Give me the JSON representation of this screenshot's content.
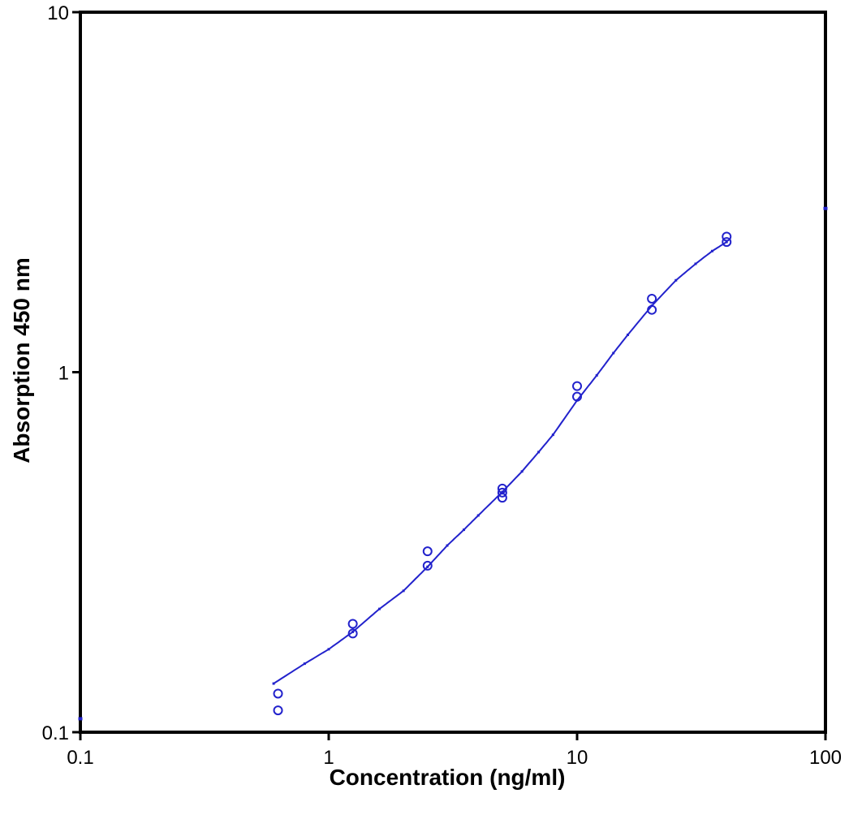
{
  "chart_data": {
    "type": "scatter",
    "xscale": "log",
    "yscale": "log",
    "xlim": [
      0.1,
      100
    ],
    "ylim": [
      0.1,
      10
    ],
    "xticks": [
      "0.1",
      "1",
      "10",
      "100"
    ],
    "yticks": [
      "0.1",
      "1",
      "10"
    ],
    "xlabel": "Concentration (ng/ml)",
    "ylabel": "Absorption 450 nm",
    "grid": false,
    "legend": "none",
    "colors": {
      "series": "#2222cc",
      "axis": "#000000"
    },
    "series": [
      {
        "kind": "points",
        "marker": "open-circle",
        "points": [
          {
            "x": 0.625,
            "y": 0.128
          },
          {
            "x": 0.625,
            "y": 0.115
          },
          {
            "x": 1.25,
            "y": 0.2
          },
          {
            "x": 1.25,
            "y": 0.188
          },
          {
            "x": 2.5,
            "y": 0.318
          },
          {
            "x": 2.5,
            "y": 0.29
          },
          {
            "x": 5,
            "y": 0.475
          },
          {
            "x": 5,
            "y": 0.463
          },
          {
            "x": 5,
            "y": 0.448
          },
          {
            "x": 10,
            "y": 0.915
          },
          {
            "x": 10,
            "y": 0.855
          },
          {
            "x": 20,
            "y": 1.6
          },
          {
            "x": 20,
            "y": 1.49
          },
          {
            "x": 40,
            "y": 2.38
          },
          {
            "x": 40,
            "y": 2.3
          }
        ]
      },
      {
        "kind": "fit-curve",
        "points": [
          {
            "x": 0.6,
            "y": 0.1365
          },
          {
            "x": 0.8,
            "y": 0.155
          },
          {
            "x": 1.0,
            "y": 0.17
          },
          {
            "x": 1.25,
            "y": 0.19
          },
          {
            "x": 1.6,
            "y": 0.22
          },
          {
            "x": 2.0,
            "y": 0.247
          },
          {
            "x": 2.5,
            "y": 0.288
          },
          {
            "x": 3.0,
            "y": 0.33
          },
          {
            "x": 3.5,
            "y": 0.365
          },
          {
            "x": 4.0,
            "y": 0.4
          },
          {
            "x": 5.0,
            "y": 0.465
          },
          {
            "x": 6.0,
            "y": 0.53
          },
          {
            "x": 7.0,
            "y": 0.6
          },
          {
            "x": 8.0,
            "y": 0.67
          },
          {
            "x": 10.0,
            "y": 0.835
          },
          {
            "x": 12.0,
            "y": 0.98
          },
          {
            "x": 14.0,
            "y": 1.13
          },
          {
            "x": 16.0,
            "y": 1.27
          },
          {
            "x": 20.0,
            "y": 1.53
          },
          {
            "x": 25.0,
            "y": 1.8
          },
          {
            "x": 30.0,
            "y": 2.0
          },
          {
            "x": 35.0,
            "y": 2.17
          },
          {
            "x": 40.0,
            "y": 2.3
          }
        ]
      },
      {
        "kind": "edge-marks",
        "points": [
          {
            "x": 0.1,
            "y": 0.109
          },
          {
            "x": 100,
            "y": 2.85
          }
        ]
      }
    ]
  }
}
